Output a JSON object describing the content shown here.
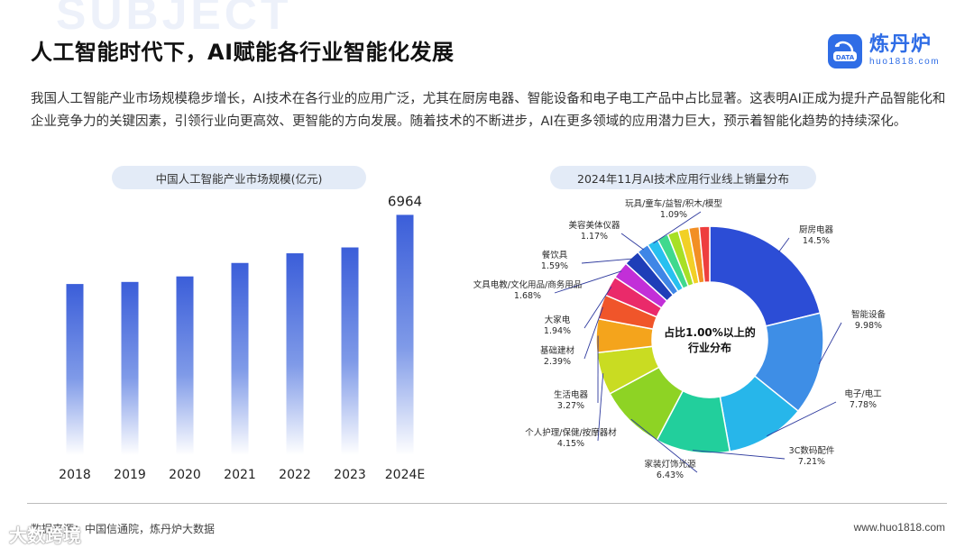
{
  "background_word": "SUBJECT",
  "header": {
    "title": "人工智能时代下，AI赋能各行业智能化发展",
    "logo_name": "炼丹炉",
    "logo_url": "huo1818.com",
    "logo_badge_text": "DATA"
  },
  "intro": "我国人工智能产业市场规模稳步增长，AI技术在各行业的应用广泛，尤其在厨房电器、智能设备和电子电工产品中占比显著。这表明AI正成为提升产品智能化和企业竞争力的关键因素，引领行业向更高效、更智能的方向发展。随着技术的不断进步，AI在更多领域的应用潜力巨大，预示着智能化趋势的持续深化。",
  "footer": {
    "source": "数据来源：中国信通院，炼丹炉大数据",
    "site": "www.huo1818.com",
    "watermark": "大数跨境"
  },
  "colors": {
    "brand": "#2f6de6",
    "bar_top": "#3b5ed9",
    "bar_bottom": "#ffffff"
  },
  "chart_data": [
    {
      "type": "bar",
      "title": "中国人工智能产业市场规模(亿元)",
      "categories": [
        "2018",
        "2019",
        "2020",
        "2021",
        "2022",
        "2023",
        "2024E"
      ],
      "values": [
        4960,
        5020,
        5180,
        5570,
        5850,
        6020,
        6964
      ],
      "data_labels": [
        "",
        "",
        "",
        "",
        "",
        "",
        "6964"
      ],
      "xlabel": "",
      "ylabel": "",
      "ylim": [
        0,
        7000
      ],
      "grid": false
    },
    {
      "type": "pie",
      "donut": true,
      "title": "2024年11月AI技术应用行业线上销量分布",
      "center_label": [
        "占比1.00%以上的",
        "行业分布"
      ],
      "slices": [
        {
          "label": "厨房电器",
          "value": 14.5,
          "value_label": "14.5%",
          "color": "#2c4dd6"
        },
        {
          "label": "智能设备",
          "value": 9.98,
          "value_label": "9.98%",
          "color": "#3e8ee6"
        },
        {
          "label": "电子/电工",
          "value": 7.78,
          "value_label": "7.78%",
          "color": "#27b6ea"
        },
        {
          "label": "3C数码配件",
          "value": 7.21,
          "value_label": "7.21%",
          "color": "#22cf9c"
        },
        {
          "label": "家装灯饰光源",
          "value": 6.43,
          "value_label": "6.43%",
          "color": "#8ed324"
        },
        {
          "label": "个人护理/保健/按摩器材",
          "value": 4.15,
          "value_label": "4.15%",
          "color": "#c9dc22"
        },
        {
          "label": "生活电器",
          "value": 3.27,
          "value_label": "3.27%",
          "color": "#f4a41c"
        },
        {
          "label": "基础建材",
          "value": 2.39,
          "value_label": "2.39%",
          "color": "#f0552a"
        },
        {
          "label": "大家电",
          "value": 1.94,
          "value_label": "1.94%",
          "color": "#ea2a6a"
        },
        {
          "label": "文具电教/文化用品/商务用品",
          "value": 1.68,
          "value_label": "1.68%",
          "color": "#c22fd8"
        },
        {
          "label": "餐饮具",
          "value": 1.59,
          "value_label": "1.59%",
          "color": "#1e3eb8"
        },
        {
          "label": "美容美体仪器",
          "value": 1.17,
          "value_label": "1.17%",
          "color": "#3f86e6"
        },
        {
          "label": "玩具/童车/益智/积木/模型",
          "value": 1.09,
          "value_label": "1.09%",
          "color": "#27c0f0"
        },
        {
          "label": "",
          "value": 1.08,
          "value_label": "",
          "color": "#3fd98e"
        },
        {
          "label": "",
          "value": 1.06,
          "value_label": "",
          "color": "#a7e025"
        },
        {
          "label": "",
          "value": 1.04,
          "value_label": "",
          "color": "#f2d026"
        },
        {
          "label": "",
          "value": 1.02,
          "value_label": "",
          "color": "#f28f24"
        },
        {
          "label": "",
          "value": 1.01,
          "value_label": "",
          "color": "#ee3e3e"
        }
      ]
    }
  ]
}
